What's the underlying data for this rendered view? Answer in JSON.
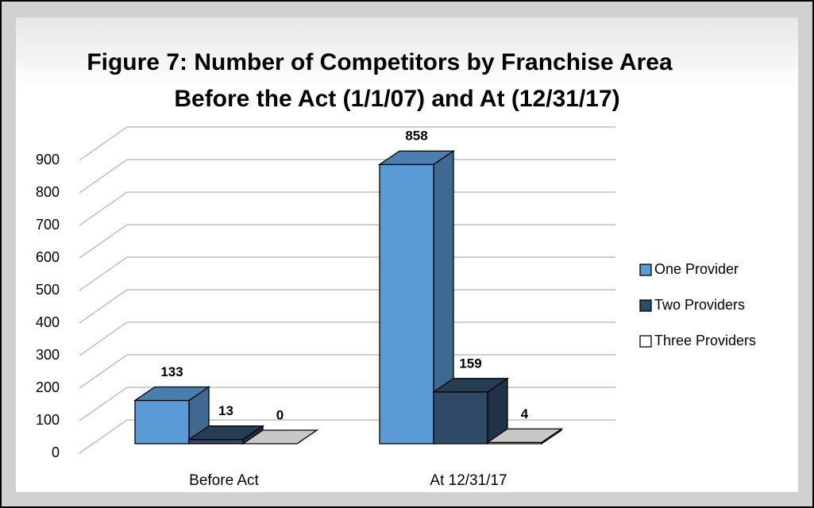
{
  "chart_data": {
    "type": "bar3d",
    "title": [
      "Figure 7: Number of Competitors by Franchise Area",
      "Before the Act (1/1/07) and At (12/31/17)"
    ],
    "categories": [
      "Before Act",
      "At 12/31/17"
    ],
    "series": [
      {
        "name": "One Provider",
        "color": "#5b9bd5",
        "values": [
          133,
          858
        ]
      },
      {
        "name": "Two Providers",
        "color": "#2f4a66",
        "values": [
          13,
          159
        ]
      },
      {
        "name": "Three Providers",
        "color": "#ffffff",
        "values": [
          0,
          4
        ]
      }
    ],
    "ylim": [
      0,
      900
    ],
    "yticks": [
      0,
      100,
      200,
      300,
      400,
      500,
      600,
      700,
      800,
      900
    ],
    "grid": true,
    "legend": "right"
  }
}
